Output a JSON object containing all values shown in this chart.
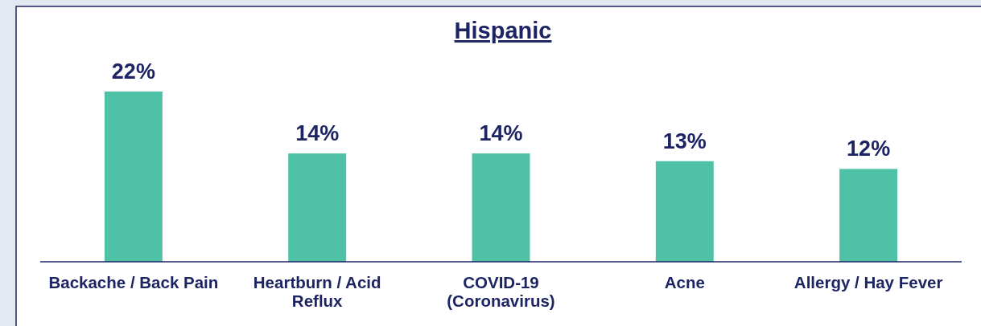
{
  "chart_data": {
    "type": "bar",
    "title": "Hispanic",
    "categories": [
      "Backache / Back Pain",
      "Heartburn / Acid Reflux",
      "COVID-19 (Coronavirus)",
      "Acne",
      "Allergy / Hay Fever"
    ],
    "values": [
      22,
      14,
      14,
      13,
      12
    ],
    "value_labels": [
      "22%",
      "14%",
      "14%",
      "13%",
      "12%"
    ],
    "color": "#4fc1a6"
  }
}
